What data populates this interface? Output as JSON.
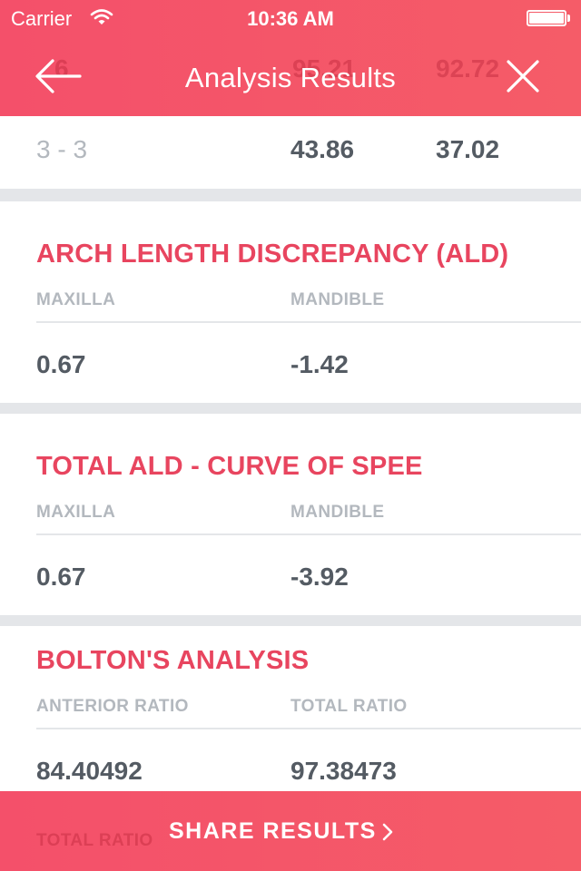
{
  "status_bar": {
    "carrier": "Carrier",
    "time": "10:36 AM"
  },
  "nav": {
    "title": "Analysis Results",
    "back_icon": "arrow-left-icon",
    "close_icon": "close-icon",
    "ghost_row": [
      "6",
      "95.21",
      "92.72"
    ]
  },
  "top_row": {
    "label": "3 - 3",
    "value_1": "43.86",
    "value_2": "37.02"
  },
  "sections": [
    {
      "title": "ARCH LENGTH DISCREPANCY (ALD)",
      "col_1": "MAXILLA",
      "col_2": "MANDIBLE",
      "val_1": "0.67",
      "val_2": "-1.42"
    },
    {
      "title": "TOTAL ALD - CURVE OF SPEE",
      "col_1": "MAXILLA",
      "col_2": "MANDIBLE",
      "val_1": "0.67",
      "val_2": "-3.92"
    },
    {
      "title": "BOLTON'S ANALYSIS",
      "col_1": "ANTERIOR RATIO",
      "col_2": "TOTAL RATIO",
      "val_1": "84.40492",
      "val_2": "97.38473"
    }
  ],
  "share": {
    "label": "SHARE RESULTS",
    "ghost_1": "TOTAL RATIO",
    "icon": "chevron-right-icon"
  },
  "colors": {
    "accent": "#F4506A",
    "section_title": "#E8455F",
    "value_text": "#545B63",
    "muted_text": "#B3B8BE",
    "divider": "#E4E6E9"
  }
}
